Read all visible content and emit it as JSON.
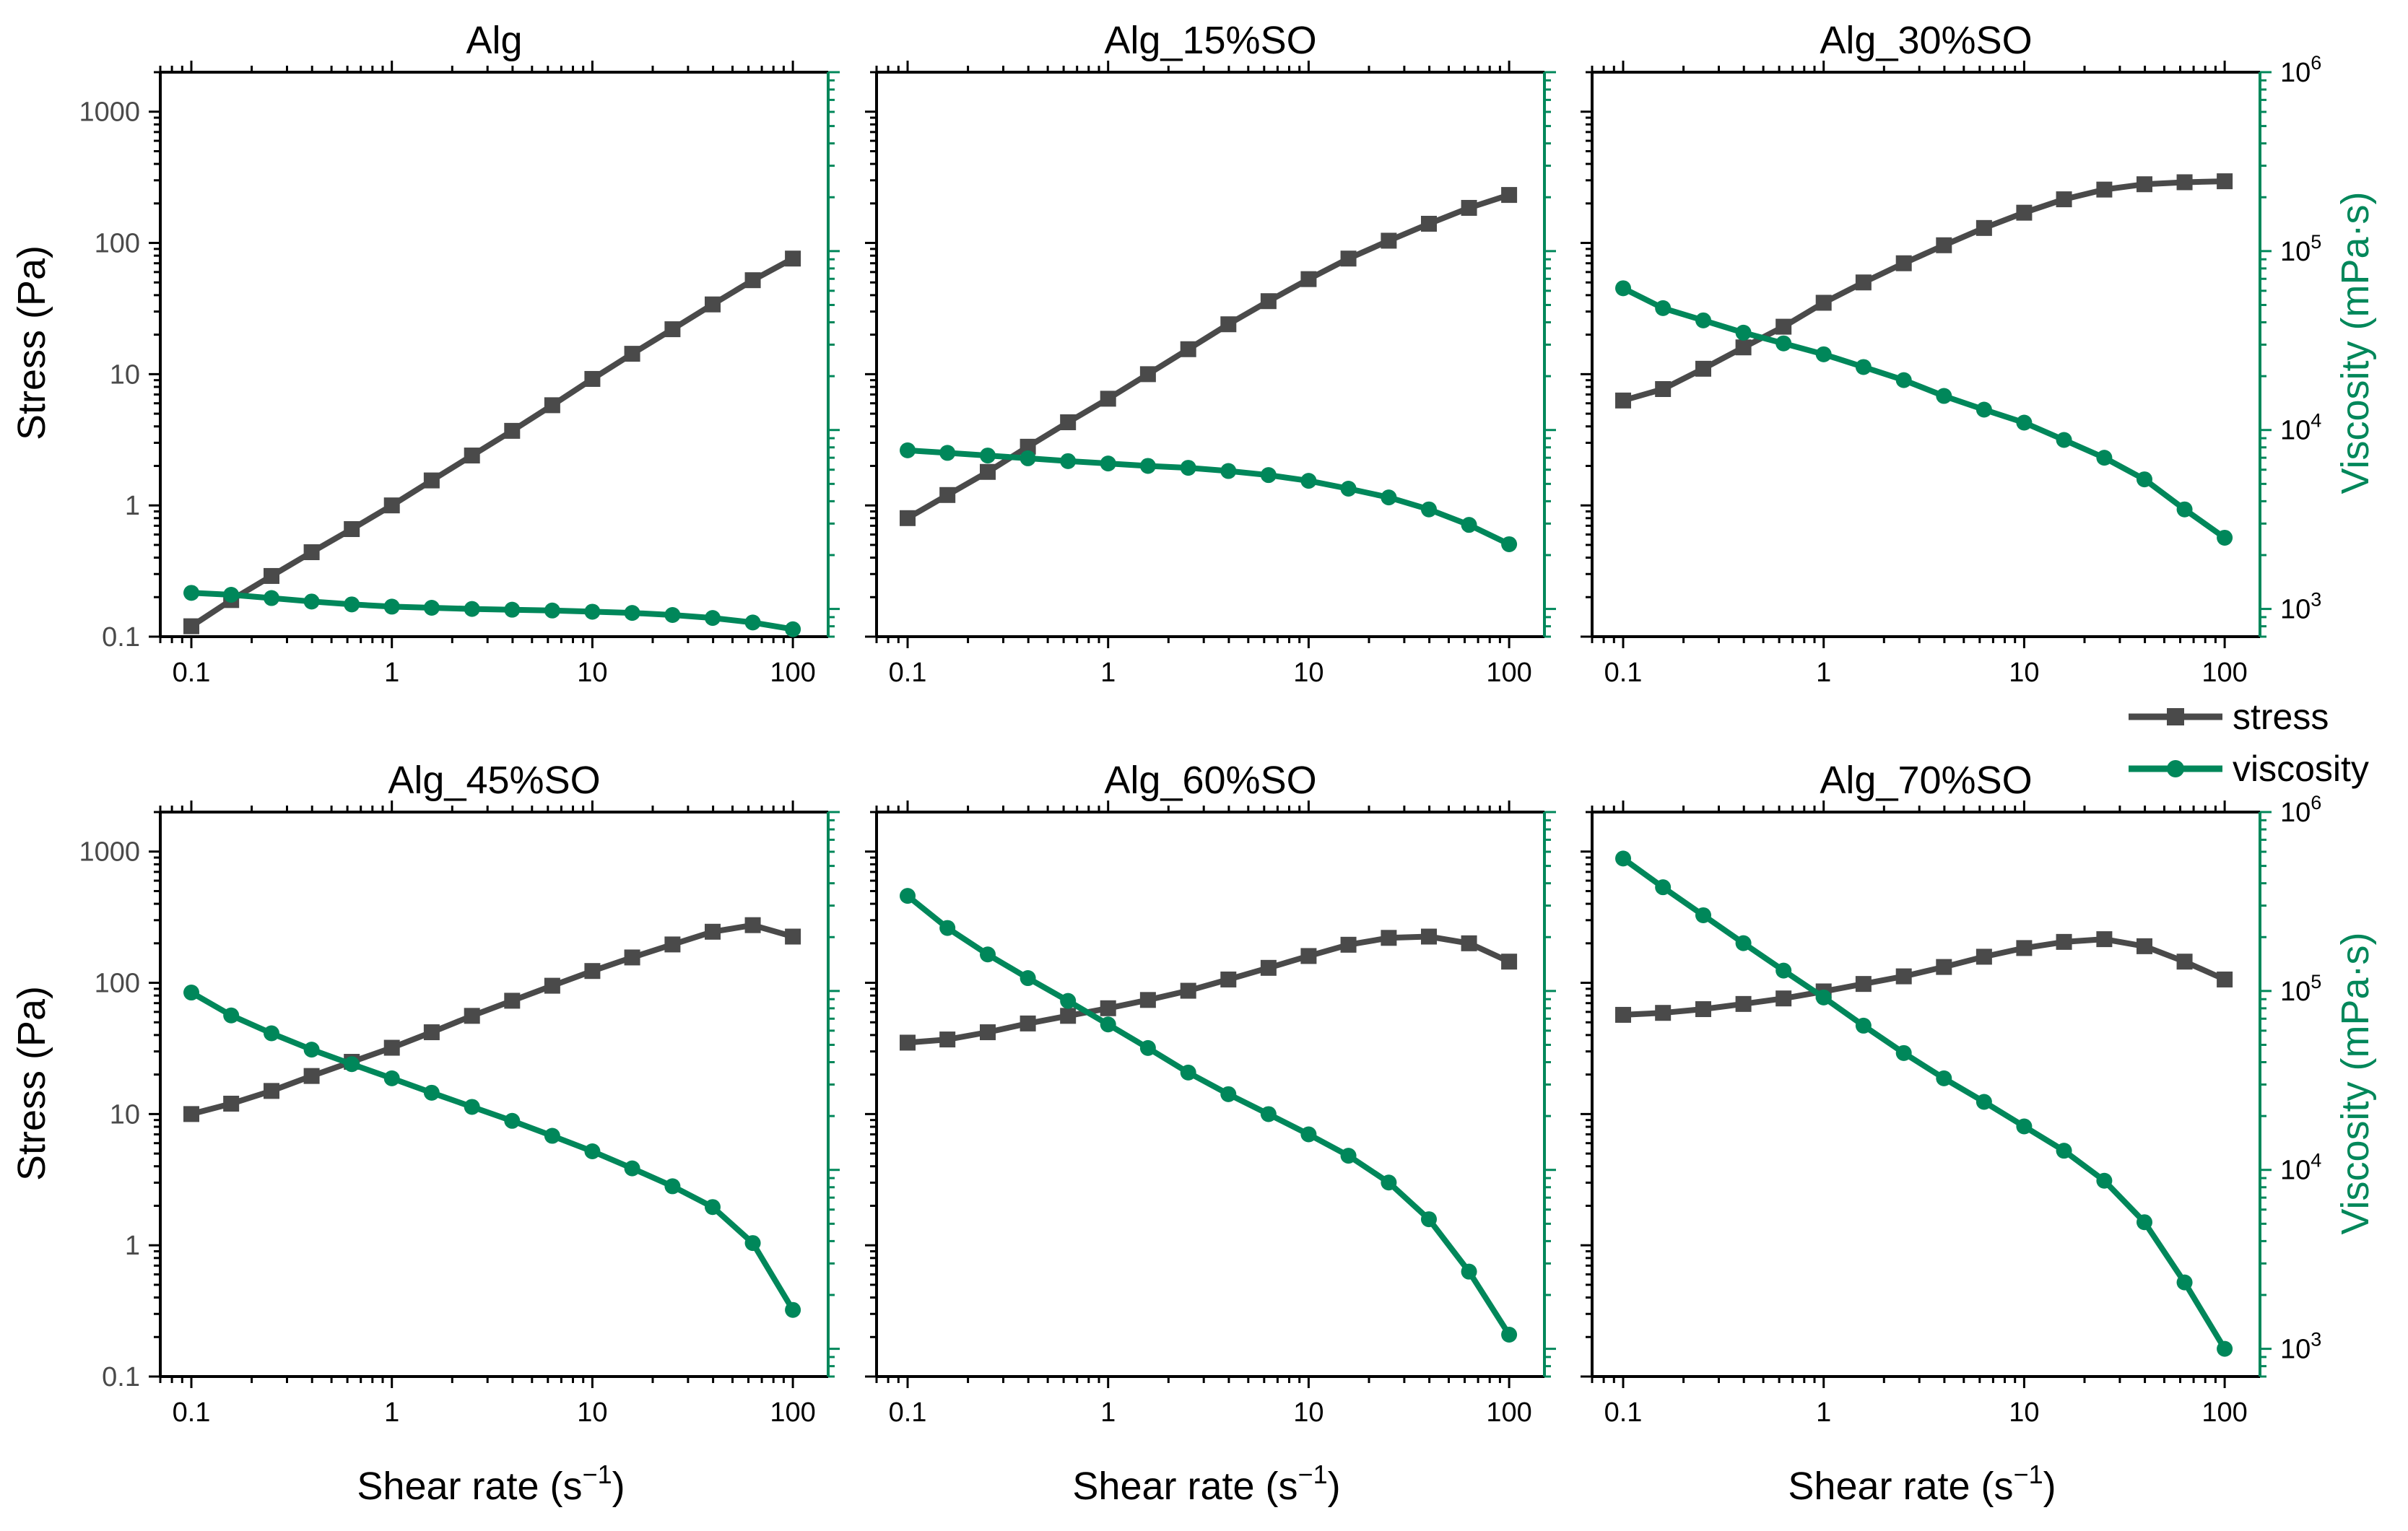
{
  "figure": {
    "xlabel": "Shear rate (s",
    "xlabel_sup": "−1",
    "xlabel_close": ")",
    "ylabel_left": "Stress (Pa)",
    "ylabel_right": "Viscosity (mPa·s)",
    "legend": {
      "placement": "right, between rows",
      "stress": "stress",
      "viscosity": "viscosity"
    },
    "colors": {
      "stress": "#4a4a4a",
      "viscosity": "#00875a",
      "axis": "#000000"
    }
  },
  "chart_data": [
    {
      "type": "line",
      "title": "Alg",
      "x_ticks": [
        "0.1",
        "1",
        "10",
        "100"
      ],
      "y_ticks": [
        "0.1",
        "1",
        "10",
        "100",
        "1000"
      ],
      "xlim": [
        0.07,
        150
      ],
      "ylim": [
        0.1,
        2000
      ],
      "y2lim": [
        700,
        1000000
      ],
      "x": [
        0.1,
        0.158,
        0.251,
        0.398,
        0.631,
        1,
        1.58,
        2.51,
        3.98,
        6.31,
        10,
        15.8,
        25.1,
        39.8,
        63.1,
        100
      ],
      "series": [
        {
          "name": "stress",
          "axis": "left",
          "values": [
            0.12,
            0.19,
            0.29,
            0.44,
            0.66,
            1.0,
            1.55,
            2.4,
            3.7,
            5.8,
            9.2,
            14.3,
            22,
            34,
            52,
            76
          ]
        },
        {
          "name": "viscosity",
          "axis": "right",
          "values": [
            1230,
            1200,
            1150,
            1100,
            1060,
            1030,
            1015,
            1000,
            990,
            980,
            965,
            950,
            925,
            890,
            840,
            770
          ]
        }
      ]
    },
    {
      "type": "line",
      "title": "Alg_15%SO",
      "x_ticks": [
        "0.1",
        "1",
        "10",
        "100"
      ],
      "y_ticks": [],
      "xlim": [
        0.07,
        150
      ],
      "ylim": [
        0.1,
        2000
      ],
      "y2lim": [
        700,
        1000000
      ],
      "x": [
        0.1,
        0.158,
        0.251,
        0.398,
        0.631,
        1,
        1.58,
        2.51,
        3.98,
        6.31,
        10,
        15.8,
        25.1,
        39.8,
        63.1,
        100
      ],
      "series": [
        {
          "name": "stress",
          "axis": "left",
          "values": [
            0.8,
            1.2,
            1.8,
            2.8,
            4.3,
            6.5,
            10,
            15.5,
            24,
            36,
            53,
            76,
            104,
            140,
            185,
            232
          ]
        },
        {
          "name": "viscosity",
          "axis": "right",
          "values": [
            7700,
            7450,
            7200,
            6950,
            6700,
            6500,
            6300,
            6150,
            5900,
            5600,
            5200,
            4700,
            4200,
            3600,
            2950,
            2300
          ]
        }
      ]
    },
    {
      "type": "line",
      "title": "Alg_30%SO",
      "x_ticks": [
        "0.1",
        "1",
        "10",
        "100"
      ],
      "y_ticks": [],
      "y2_ticks": [
        "10^3",
        "10^4",
        "10^5",
        "10^6"
      ],
      "xlim": [
        0.07,
        150
      ],
      "ylim": [
        0.1,
        2000
      ],
      "y2lim": [
        700,
        1000000
      ],
      "x": [
        0.1,
        0.158,
        0.251,
        0.398,
        0.631,
        1,
        1.58,
        2.51,
        3.98,
        6.31,
        10,
        15.8,
        25.1,
        39.8,
        63.1,
        100
      ],
      "series": [
        {
          "name": "stress",
          "axis": "left",
          "values": [
            6.3,
            7.7,
            11,
            16,
            23,
            35,
            50,
            70,
            96,
            130,
            170,
            215,
            255,
            280,
            290,
            295
          ]
        },
        {
          "name": "viscosity",
          "axis": "right",
          "values": [
            62000,
            48000,
            41000,
            35000,
            30500,
            26500,
            22500,
            19000,
            15500,
            13000,
            11000,
            8800,
            7000,
            5300,
            3600,
            2500
          ]
        }
      ]
    },
    {
      "type": "line",
      "title": "Alg_45%SO",
      "x_ticks": [
        "0.1",
        "1",
        "10",
        "100"
      ],
      "y_ticks": [
        "0.1",
        "1",
        "10",
        "100",
        "1000"
      ],
      "xlim": [
        0.07,
        150
      ],
      "ylim": [
        0.1,
        2000
      ],
      "y2lim": [
        700,
        1000000
      ],
      "x": [
        0.1,
        0.158,
        0.251,
        0.398,
        0.631,
        1,
        1.58,
        2.51,
        3.98,
        6.31,
        10,
        15.8,
        25.1,
        39.8,
        63.1,
        100
      ],
      "series": [
        {
          "name": "stress",
          "axis": "left",
          "values": [
            10,
            12,
            15,
            19.5,
            25,
            32,
            42,
            56,
            73,
            95,
            123,
            156,
            196,
            245,
            275,
            225
          ]
        },
        {
          "name": "viscosity",
          "axis": "right",
          "values": [
            98000,
            73000,
            58000,
            47000,
            39000,
            32500,
            27000,
            22500,
            18800,
            15500,
            12700,
            10200,
            8100,
            6200,
            3900,
            1650
          ]
        }
      ]
    },
    {
      "type": "line",
      "title": "Alg_60%SO",
      "x_ticks": [
        "0.1",
        "1",
        "10",
        "100"
      ],
      "y_ticks": [],
      "xlim": [
        0.07,
        150
      ],
      "ylim": [
        0.1,
        2000
      ],
      "y2lim": [
        700,
        1000000
      ],
      "x": [
        0.1,
        0.158,
        0.251,
        0.398,
        0.631,
        1,
        1.58,
        2.51,
        3.98,
        6.31,
        10,
        15.8,
        25.1,
        39.8,
        63.1,
        100
      ],
      "series": [
        {
          "name": "stress",
          "axis": "left",
          "values": [
            35,
            37,
            42,
            49,
            56,
            64,
            74,
            87,
            106,
            130,
            160,
            195,
            220,
            225,
            200,
            145
          ]
        },
        {
          "name": "viscosity",
          "axis": "right",
          "values": [
            340000,
            225000,
            160000,
            118000,
            88000,
            65000,
            48000,
            35000,
            26500,
            20500,
            15800,
            12000,
            8500,
            5300,
            2700,
            1200
          ]
        }
      ]
    },
    {
      "type": "line",
      "title": "Alg_70%SO",
      "x_ticks": [
        "0.1",
        "1",
        "10",
        "100"
      ],
      "y_ticks": [],
      "y2_ticks": [
        "10^3",
        "10^4",
        "10^5",
        "10^6"
      ],
      "xlim": [
        0.07,
        150
      ],
      "ylim": [
        0.1,
        2000
      ],
      "y2lim": [
        700,
        1000000
      ],
      "x": [
        0.1,
        0.158,
        0.251,
        0.398,
        0.631,
        1,
        1.58,
        2.51,
        3.98,
        6.31,
        10,
        15.8,
        25.1,
        39.8,
        63.1,
        100
      ],
      "series": [
        {
          "name": "stress",
          "axis": "left",
          "values": [
            57,
            59,
            63,
            69,
            76,
            86,
            98,
            112,
            132,
            158,
            184,
            205,
            215,
            190,
            145,
            106
          ]
        },
        {
          "name": "viscosity",
          "axis": "right",
          "values": [
            550000,
            380000,
            265000,
            185000,
            130000,
            92000,
            64000,
            45000,
            32500,
            24000,
            17500,
            12800,
            8700,
            5100,
            2350,
            1000
          ]
        }
      ]
    }
  ]
}
